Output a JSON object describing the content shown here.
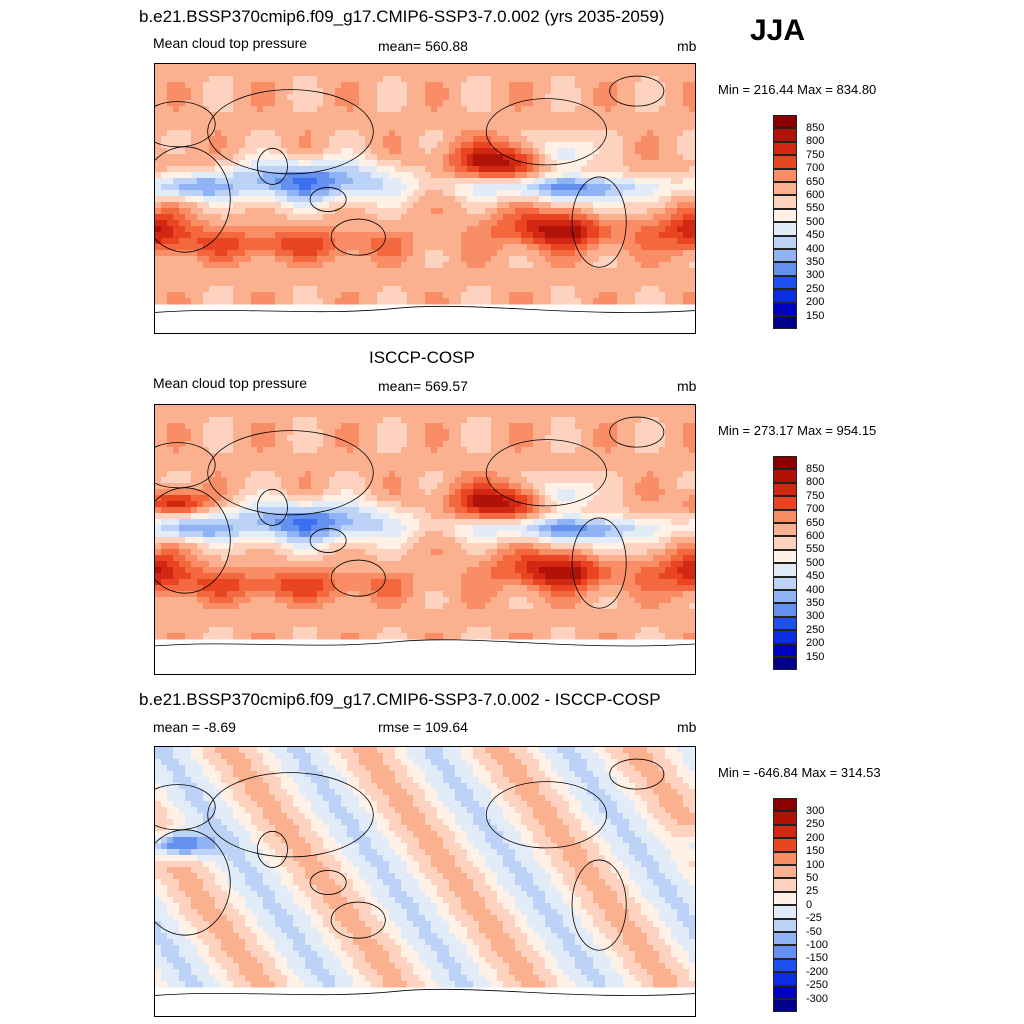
{
  "season": "JJA",
  "colors": {
    "seq": [
      "#00008b",
      "#0000bf",
      "#0d2de0",
      "#1e50f0",
      "#3c6ff0",
      "#6490f0",
      "#8fb3f5",
      "#bcd3f7",
      "#e2ecf8",
      "#fff1e6",
      "#fdd3bf",
      "#fbb08f",
      "#f98e66",
      "#f4683f",
      "#ea4523",
      "#d22813",
      "#b01208",
      "#8b0000"
    ],
    "diff": [
      "#00008b",
      "#0000bf",
      "#0d2de0",
      "#1e50f0",
      "#3c6ff0",
      "#6490f0",
      "#8fb3f5",
      "#bcd3f7",
      "#e2ecf8",
      "#fff1e6",
      "#fdd3bf",
      "#fbb08f",
      "#f98e66",
      "#f4683f",
      "#ea4523",
      "#d22813",
      "#b01208",
      "#8b0000"
    ]
  },
  "panels": [
    {
      "title": "b.e21.BSSP370cmip6.f09_g17.CMIP6-SSP3-7.0.002 (yrs 2035-2059)",
      "left_label": "Mean cloud top pressure",
      "center_label": "mean= 560.88",
      "units": "mb",
      "minmax": "Min = 216.44 Max = 834.80",
      "colorbar_labels": [
        "850",
        "800",
        "750",
        "700",
        "650",
        "600",
        "550",
        "500",
        "450",
        "400",
        "350",
        "300",
        "250",
        "200",
        "150"
      ],
      "scheme": "seq"
    },
    {
      "title": "ISCCP-COSP",
      "left_label": "Mean cloud top pressure",
      "center_label": "mean= 569.57",
      "units": "mb",
      "minmax": "Min = 273.17 Max = 954.15",
      "colorbar_labels": [
        "850",
        "800",
        "750",
        "700",
        "650",
        "600",
        "550",
        "500",
        "450",
        "400",
        "350",
        "300",
        "250",
        "200",
        "150"
      ],
      "scheme": "seq"
    },
    {
      "title": "b.e21.BSSP370cmip6.f09_g17.CMIP6-SSP3-7.0.002 - ISCCP-COSP",
      "left_label": "mean =  -8.69",
      "center_label": "rmse = 109.64",
      "units": "mb",
      "minmax": "Min = -646.84 Max = 314.53",
      "colorbar_labels": [
        "300",
        "250",
        "200",
        "150",
        "100",
        "50",
        "25",
        "0",
        "-25",
        "-50",
        "-100",
        "-150",
        "-200",
        "-250",
        "-300"
      ],
      "scheme": "diff"
    }
  ]
}
